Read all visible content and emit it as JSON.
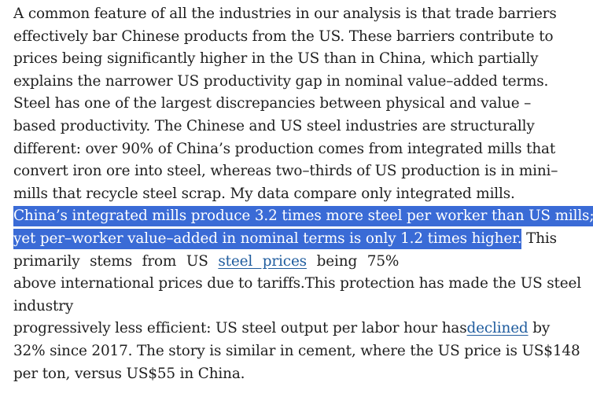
{
  "paragraph": {
    "lines": [
      "A common feature of all the industries in our analysis is that trade barriers",
      "effectively bar Chinese products from the US. These barriers contribute to",
      "prices being significantly higher in the US than in China, which partially",
      "explains the narrower US productivity gap in nominal value–added terms.",
      "Steel has one of the largest discrepancies between physical and value –",
      "based productivity. The Chinese and US steel industries are structurally",
      "different: over 90% of China’s production comes from integrated mills that",
      "convert iron ore into steel, whereas two–thirds of US production is in mini–",
      "mills that recycle steel scrap. My data compare only integrated mills."
    ],
    "highlight_line_1": "China’s integrated mills produce 3.2 times more steel per worker than US mills;",
    "highlight_line_2": "yet per–worker value–added in nominal terms is only 1.2 times higher.",
    "after_highlight": " This",
    "line_primarily_before": "primarily stems from US ",
    "link_steel_prices": "steel prices",
    "line_primarily_after": " being 75%",
    "line_above": "above international prices due to tariffs.This protection has made the US steel",
    "line_industry": "industry",
    "line_progressively_before": "progressively less efficient: US steel output per labor hour has",
    "link_declined": "declined",
    "line_progressively_after": " by",
    "line_32": "32% since 2017. The story is similar in cement, where the US price is US$148",
    "line_last": "per ton, versus US$55 in China."
  }
}
